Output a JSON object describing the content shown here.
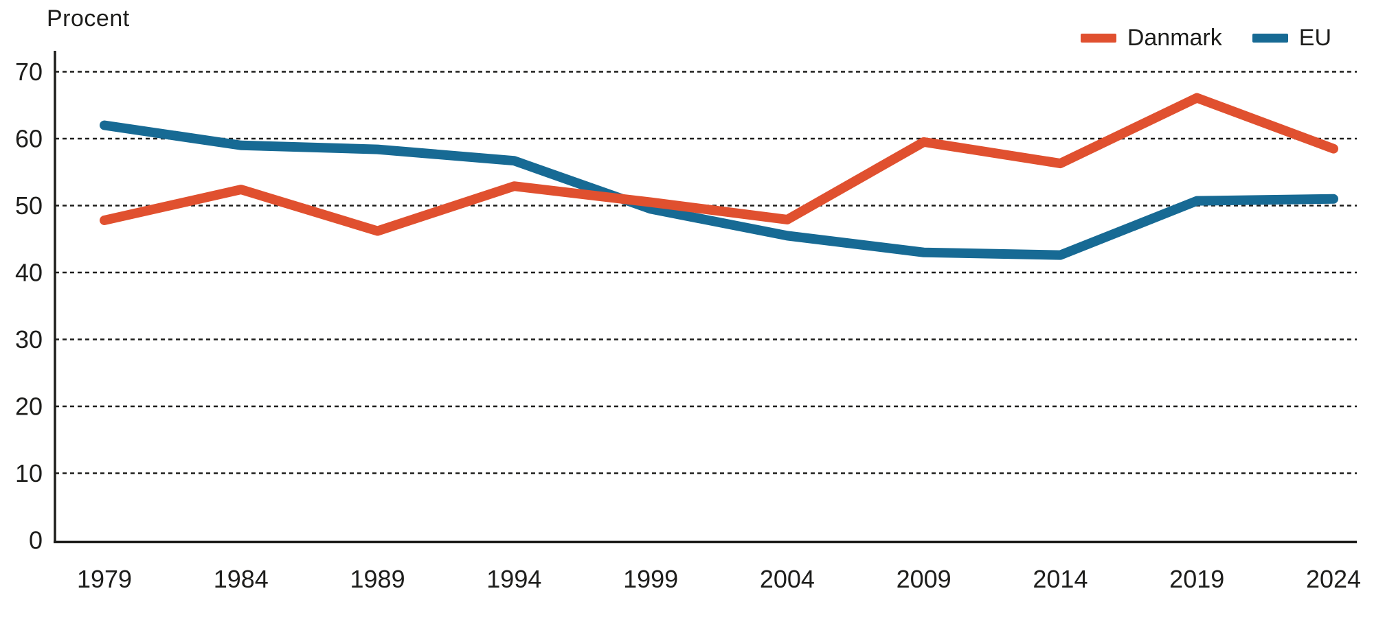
{
  "colors": {
    "danmark": "#e0502f",
    "eu": "#176a94",
    "axis": "#1d1d1b",
    "grid": "#1d1d1b",
    "text": "#1d1d1b",
    "background": "#ffffff"
  },
  "legend": {
    "items": [
      {
        "label": "Danmark",
        "color": "#e0502f"
      },
      {
        "label": "EU",
        "color": "#176a94"
      }
    ]
  },
  "chart_data": {
    "type": "line",
    "title": "Procent",
    "ylabel": "Procent",
    "categories": [
      "1979",
      "1984",
      "1989",
      "1994",
      "1999",
      "2004",
      "2009",
      "2014",
      "2019",
      "2024"
    ],
    "series": [
      {
        "name": "Danmark",
        "color": "#e0502f",
        "values": [
          47.8,
          52.4,
          46.2,
          52.9,
          50.5,
          47.9,
          59.5,
          56.3,
          66.1,
          58.5
        ]
      },
      {
        "name": "EU",
        "color": "#176a94",
        "values": [
          62.0,
          59.0,
          58.4,
          56.7,
          49.5,
          45.5,
          43.0,
          42.6,
          50.7,
          51.0
        ]
      }
    ],
    "ylim": [
      0,
      70
    ],
    "yticks": [
      0,
      10,
      20,
      30,
      40,
      50,
      60,
      70
    ],
    "grid": "dotted-horizontal",
    "legend_position": "top-right"
  }
}
